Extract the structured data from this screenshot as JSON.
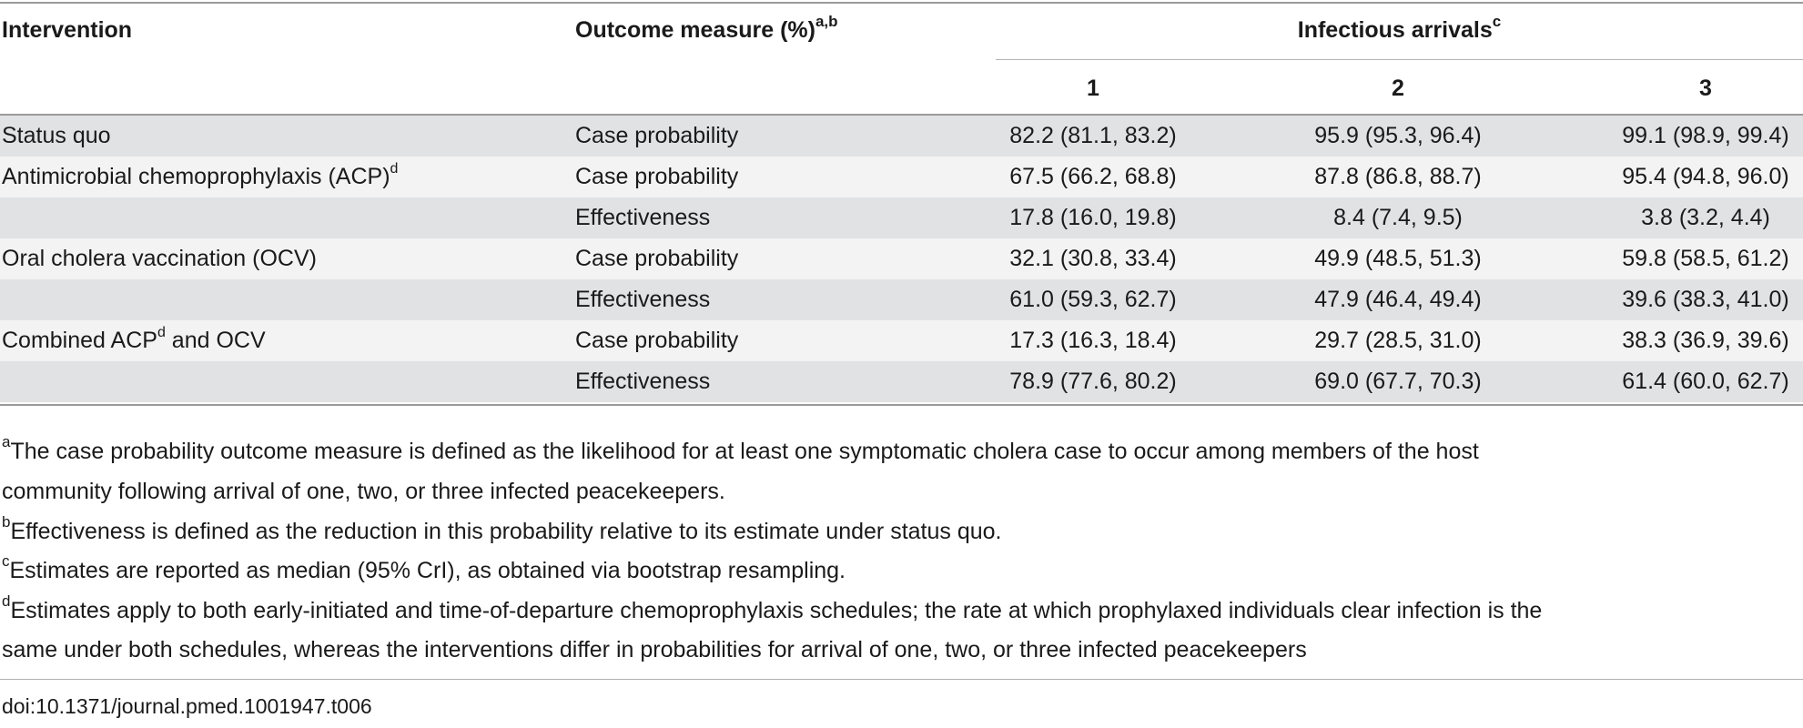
{
  "table": {
    "header": {
      "intervention": "Intervention",
      "outcome": "Outcome measure (%)",
      "outcome_sup": "a,b",
      "group": "Infectious arrivals",
      "group_sup": "c",
      "cols": [
        "1",
        "2",
        "3"
      ]
    },
    "rows": [
      {
        "intervention": "Status quo",
        "intervention_sup": "",
        "intervention_after": "",
        "measure": "Case probability",
        "values": [
          "82.2 (81.1, 83.2)",
          "95.9 (95.3, 96.4)",
          "99.1 (98.9, 99.4)"
        ]
      },
      {
        "intervention": "Antimicrobial chemoprophylaxis (ACP)",
        "intervention_sup": "d",
        "intervention_after": "",
        "measure": "Case probability",
        "values": [
          "67.5 (66.2, 68.8)",
          "87.8 (86.8, 88.7)",
          "95.4 (94.8, 96.0)"
        ]
      },
      {
        "intervention": "",
        "intervention_sup": "",
        "intervention_after": "",
        "measure": "Effectiveness",
        "values": [
          "17.8 (16.0, 19.8)",
          "8.4 (7.4, 9.5)",
          "3.8 (3.2, 4.4)"
        ]
      },
      {
        "intervention": "Oral cholera vaccination (OCV)",
        "intervention_sup": "",
        "intervention_after": "",
        "measure": "Case probability",
        "values": [
          "32.1 (30.8, 33.4)",
          "49.9 (48.5, 51.3)",
          "59.8 (58.5, 61.2)"
        ]
      },
      {
        "intervention": "",
        "intervention_sup": "",
        "intervention_after": "",
        "measure": "Effectiveness",
        "values": [
          "61.0 (59.3, 62.7)",
          "47.9 (46.4, 49.4)",
          "39.6 (38.3, 41.0)"
        ]
      },
      {
        "intervention": "Combined ACP",
        "intervention_sup": "d",
        "intervention_after": " and OCV",
        "measure": "Case probability",
        "values": [
          "17.3 (16.3, 18.4)",
          "29.7 (28.5, 31.0)",
          "38.3 (36.9, 39.6)"
        ]
      },
      {
        "intervention": "",
        "intervention_sup": "",
        "intervention_after": "",
        "measure": "Effectiveness",
        "values": [
          "78.9 (77.6, 80.2)",
          "69.0 (67.7, 70.3)",
          "61.4 (60.0, 62.7)"
        ]
      }
    ]
  },
  "footnotes": [
    {
      "mark": "a",
      "lines": [
        "The case probability outcome measure is defined as the likelihood for at least one symptomatic cholera case to occur among members of the host",
        "community following arrival of one, two, or three infected peacekeepers."
      ]
    },
    {
      "mark": "b",
      "lines": [
        "Effectiveness is defined as the reduction in this probability relative to its estimate under status quo."
      ]
    },
    {
      "mark": "c",
      "lines": [
        "Estimates are reported as median (95% CrI), as obtained via bootstrap resampling."
      ]
    },
    {
      "mark": "d",
      "lines": [
        "Estimates apply to both early-initiated and time-of-departure chemoprophylaxis schedules; the rate at which prophylaxed individuals clear infection is the",
        "same under both schedules, whereas the interventions differ in probabilities for arrival of one, two, or three infected peacekeepers"
      ]
    }
  ],
  "doi": "doi:10.1371/journal.pmed.1001947.t006"
}
